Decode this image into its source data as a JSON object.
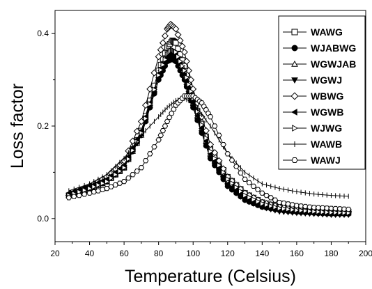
{
  "chart_data": {
    "type": "line",
    "title": "",
    "xlabel": "Temperature (Celsius)",
    "ylabel": "Loss factor",
    "xlim": [
      20,
      200
    ],
    "ylim": [
      -0.05,
      0.45
    ],
    "x_ticks": [
      "20",
      "40",
      "60",
      "80",
      "100",
      "120",
      "140",
      "160",
      "180",
      "200"
    ],
    "y_ticks": [
      "0.0",
      "0.2",
      "0.4"
    ],
    "legend_position": "top-right",
    "grid": false,
    "series": [
      {
        "name": "WAWG",
        "marker": "square-open",
        "x": [
          28,
          40,
          50,
          60,
          70,
          80,
          85,
          88,
          90,
          95,
          100,
          110,
          120,
          130,
          140,
          150,
          160,
          170,
          180,
          190
        ],
        "y": [
          0.05,
          0.065,
          0.08,
          0.11,
          0.19,
          0.32,
          0.37,
          0.385,
          0.38,
          0.33,
          0.26,
          0.15,
          0.09,
          0.055,
          0.035,
          0.025,
          0.02,
          0.018,
          0.016,
          0.015
        ]
      },
      {
        "name": "WJABWG",
        "marker": "circle-filled",
        "x": [
          28,
          40,
          50,
          60,
          70,
          80,
          85,
          88,
          90,
          95,
          100,
          110,
          120,
          130,
          140,
          150,
          160,
          170,
          180,
          190
        ],
        "y": [
          0.05,
          0.065,
          0.08,
          0.11,
          0.18,
          0.3,
          0.34,
          0.345,
          0.34,
          0.3,
          0.24,
          0.13,
          0.07,
          0.04,
          0.025,
          0.018,
          0.014,
          0.012,
          0.01,
          0.01
        ]
      },
      {
        "name": "WGWJAB",
        "marker": "triangle-up-open",
        "x": [
          28,
          40,
          50,
          60,
          70,
          80,
          85,
          88,
          90,
          95,
          100,
          110,
          120,
          130,
          140,
          150,
          160,
          170,
          180,
          190
        ],
        "y": [
          0.05,
          0.065,
          0.08,
          0.11,
          0.18,
          0.31,
          0.35,
          0.36,
          0.355,
          0.31,
          0.25,
          0.14,
          0.08,
          0.045,
          0.03,
          0.02,
          0.016,
          0.014,
          0.012,
          0.012
        ]
      },
      {
        "name": "WGWJ",
        "marker": "triangle-down-filled",
        "x": [
          28,
          40,
          50,
          60,
          70,
          80,
          85,
          88,
          90,
          95,
          100,
          110,
          120,
          130,
          140,
          150,
          160,
          170,
          180,
          190
        ],
        "y": [
          0.05,
          0.065,
          0.08,
          0.11,
          0.18,
          0.3,
          0.34,
          0.35,
          0.345,
          0.3,
          0.24,
          0.13,
          0.07,
          0.04,
          0.025,
          0.015,
          0.012,
          0.01,
          0.008,
          0.008
        ]
      },
      {
        "name": "WBWG",
        "marker": "diamond-open",
        "x": [
          28,
          40,
          50,
          60,
          70,
          80,
          85,
          87,
          90,
          95,
          100,
          110,
          120,
          130,
          140,
          150,
          160,
          170,
          180,
          190
        ],
        "y": [
          0.05,
          0.07,
          0.09,
          0.125,
          0.21,
          0.35,
          0.41,
          0.42,
          0.41,
          0.36,
          0.28,
          0.16,
          0.09,
          0.055,
          0.035,
          0.025,
          0.02,
          0.018,
          0.016,
          0.015
        ]
      },
      {
        "name": "WGWB",
        "marker": "triangle-left-filled",
        "x": [
          28,
          40,
          50,
          60,
          70,
          80,
          85,
          88,
          90,
          95,
          100,
          110,
          120,
          130,
          140,
          150,
          160,
          170,
          180,
          190
        ],
        "y": [
          0.055,
          0.07,
          0.085,
          0.115,
          0.19,
          0.31,
          0.35,
          0.36,
          0.355,
          0.31,
          0.25,
          0.14,
          0.075,
          0.045,
          0.03,
          0.02,
          0.016,
          0.014,
          0.012,
          0.012
        ]
      },
      {
        "name": "WJWG",
        "marker": "triangle-right-open",
        "x": [
          28,
          40,
          50,
          60,
          70,
          80,
          85,
          88,
          90,
          95,
          100,
          110,
          120,
          130,
          140,
          150,
          160,
          170,
          180,
          190
        ],
        "y": [
          0.05,
          0.065,
          0.08,
          0.11,
          0.185,
          0.31,
          0.355,
          0.365,
          0.36,
          0.32,
          0.26,
          0.145,
          0.085,
          0.05,
          0.032,
          0.022,
          0.018,
          0.015,
          0.013,
          0.012
        ]
      },
      {
        "name": "WAWB",
        "marker": "vertical-bar",
        "x": [
          28,
          40,
          50,
          60,
          70,
          80,
          85,
          90,
          95,
          100,
          110,
          120,
          130,
          140,
          150,
          160,
          170,
          180,
          190
        ],
        "y": [
          0.06,
          0.075,
          0.095,
          0.13,
          0.18,
          0.22,
          0.24,
          0.255,
          0.26,
          0.25,
          0.2,
          0.14,
          0.1,
          0.075,
          0.065,
          0.058,
          0.053,
          0.05,
          0.048
        ]
      },
      {
        "name": "WAWJ",
        "marker": "hexagon-open",
        "x": [
          28,
          40,
          50,
          60,
          70,
          80,
          85,
          90,
          95,
          100,
          105,
          110,
          120,
          130,
          140,
          150,
          160,
          170,
          180,
          190
        ],
        "y": [
          0.045,
          0.055,
          0.065,
          0.08,
          0.11,
          0.17,
          0.21,
          0.245,
          0.265,
          0.265,
          0.25,
          0.22,
          0.14,
          0.085,
          0.055,
          0.035,
          0.028,
          0.024,
          0.022,
          0.02
        ]
      }
    ]
  }
}
